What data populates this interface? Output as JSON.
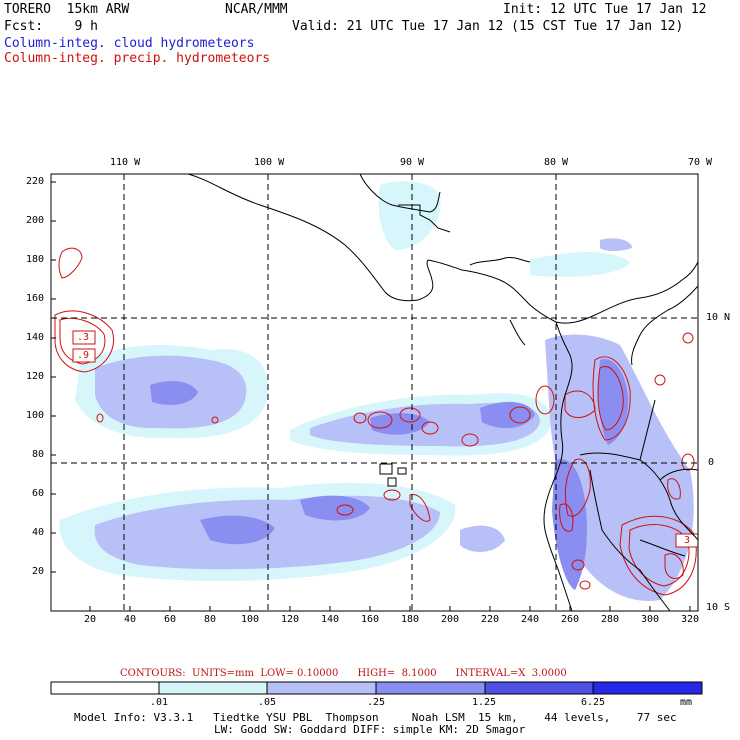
{
  "header": {
    "model": "TORERO  15km ARW",
    "org": "NCAR/MMM",
    "init": "Init: 12 UTC Tue 17 Jan 12",
    "fcst": "Fcst:    9 h",
    "valid": "Valid: 21 UTC Tue 17 Jan 12 (15 CST Tue 17 Jan 12)",
    "field_cloud": "Column-integ. cloud hydrometeors",
    "field_precip": "Column-integ. precip. hydrometeors"
  },
  "axes": {
    "top_lon": [
      "110 W",
      "100 W",
      "90 W",
      "80 W",
      "70 W"
    ],
    "right_lat": [
      "10 N",
      "0",
      "10 S"
    ],
    "left_y": [
      "220",
      "200",
      "180",
      "160",
      "140",
      "120",
      "100",
      "80",
      "60",
      "40",
      "20"
    ],
    "bottom_x": [
      "20",
      "40",
      "60",
      "80",
      "100",
      "120",
      "140",
      "160",
      "180",
      "200",
      "220",
      "240",
      "260",
      "280",
      "300",
      "320"
    ]
  },
  "contour_labels": [
    ".3",
    ".9",
    "3"
  ],
  "contours_info": "CONTOURS:  UNITS=mm  LOW= 0.10000      HIGH=  8.1000      INTERVAL=X  3.0000",
  "colorbar": {
    "labels": [
      ".01",
      ".05",
      ".25",
      "1.25",
      "6.25"
    ],
    "unit": "mm",
    "colors": [
      "#ffffff",
      "#d6f6fb",
      "#c8d2fa",
      "#a8aef4",
      "#7070ea",
      "#4040e0",
      "#2020e8"
    ]
  },
  "footer": {
    "line1": "Model Info: V3.3.1   Tiedtke YSU PBL  Thompson     Noah LSM  15 km,    44 levels,    77 sec",
    "line2": "LW: Godd SW: Goddard DIFF: simple KM: 2D Smagor"
  }
}
